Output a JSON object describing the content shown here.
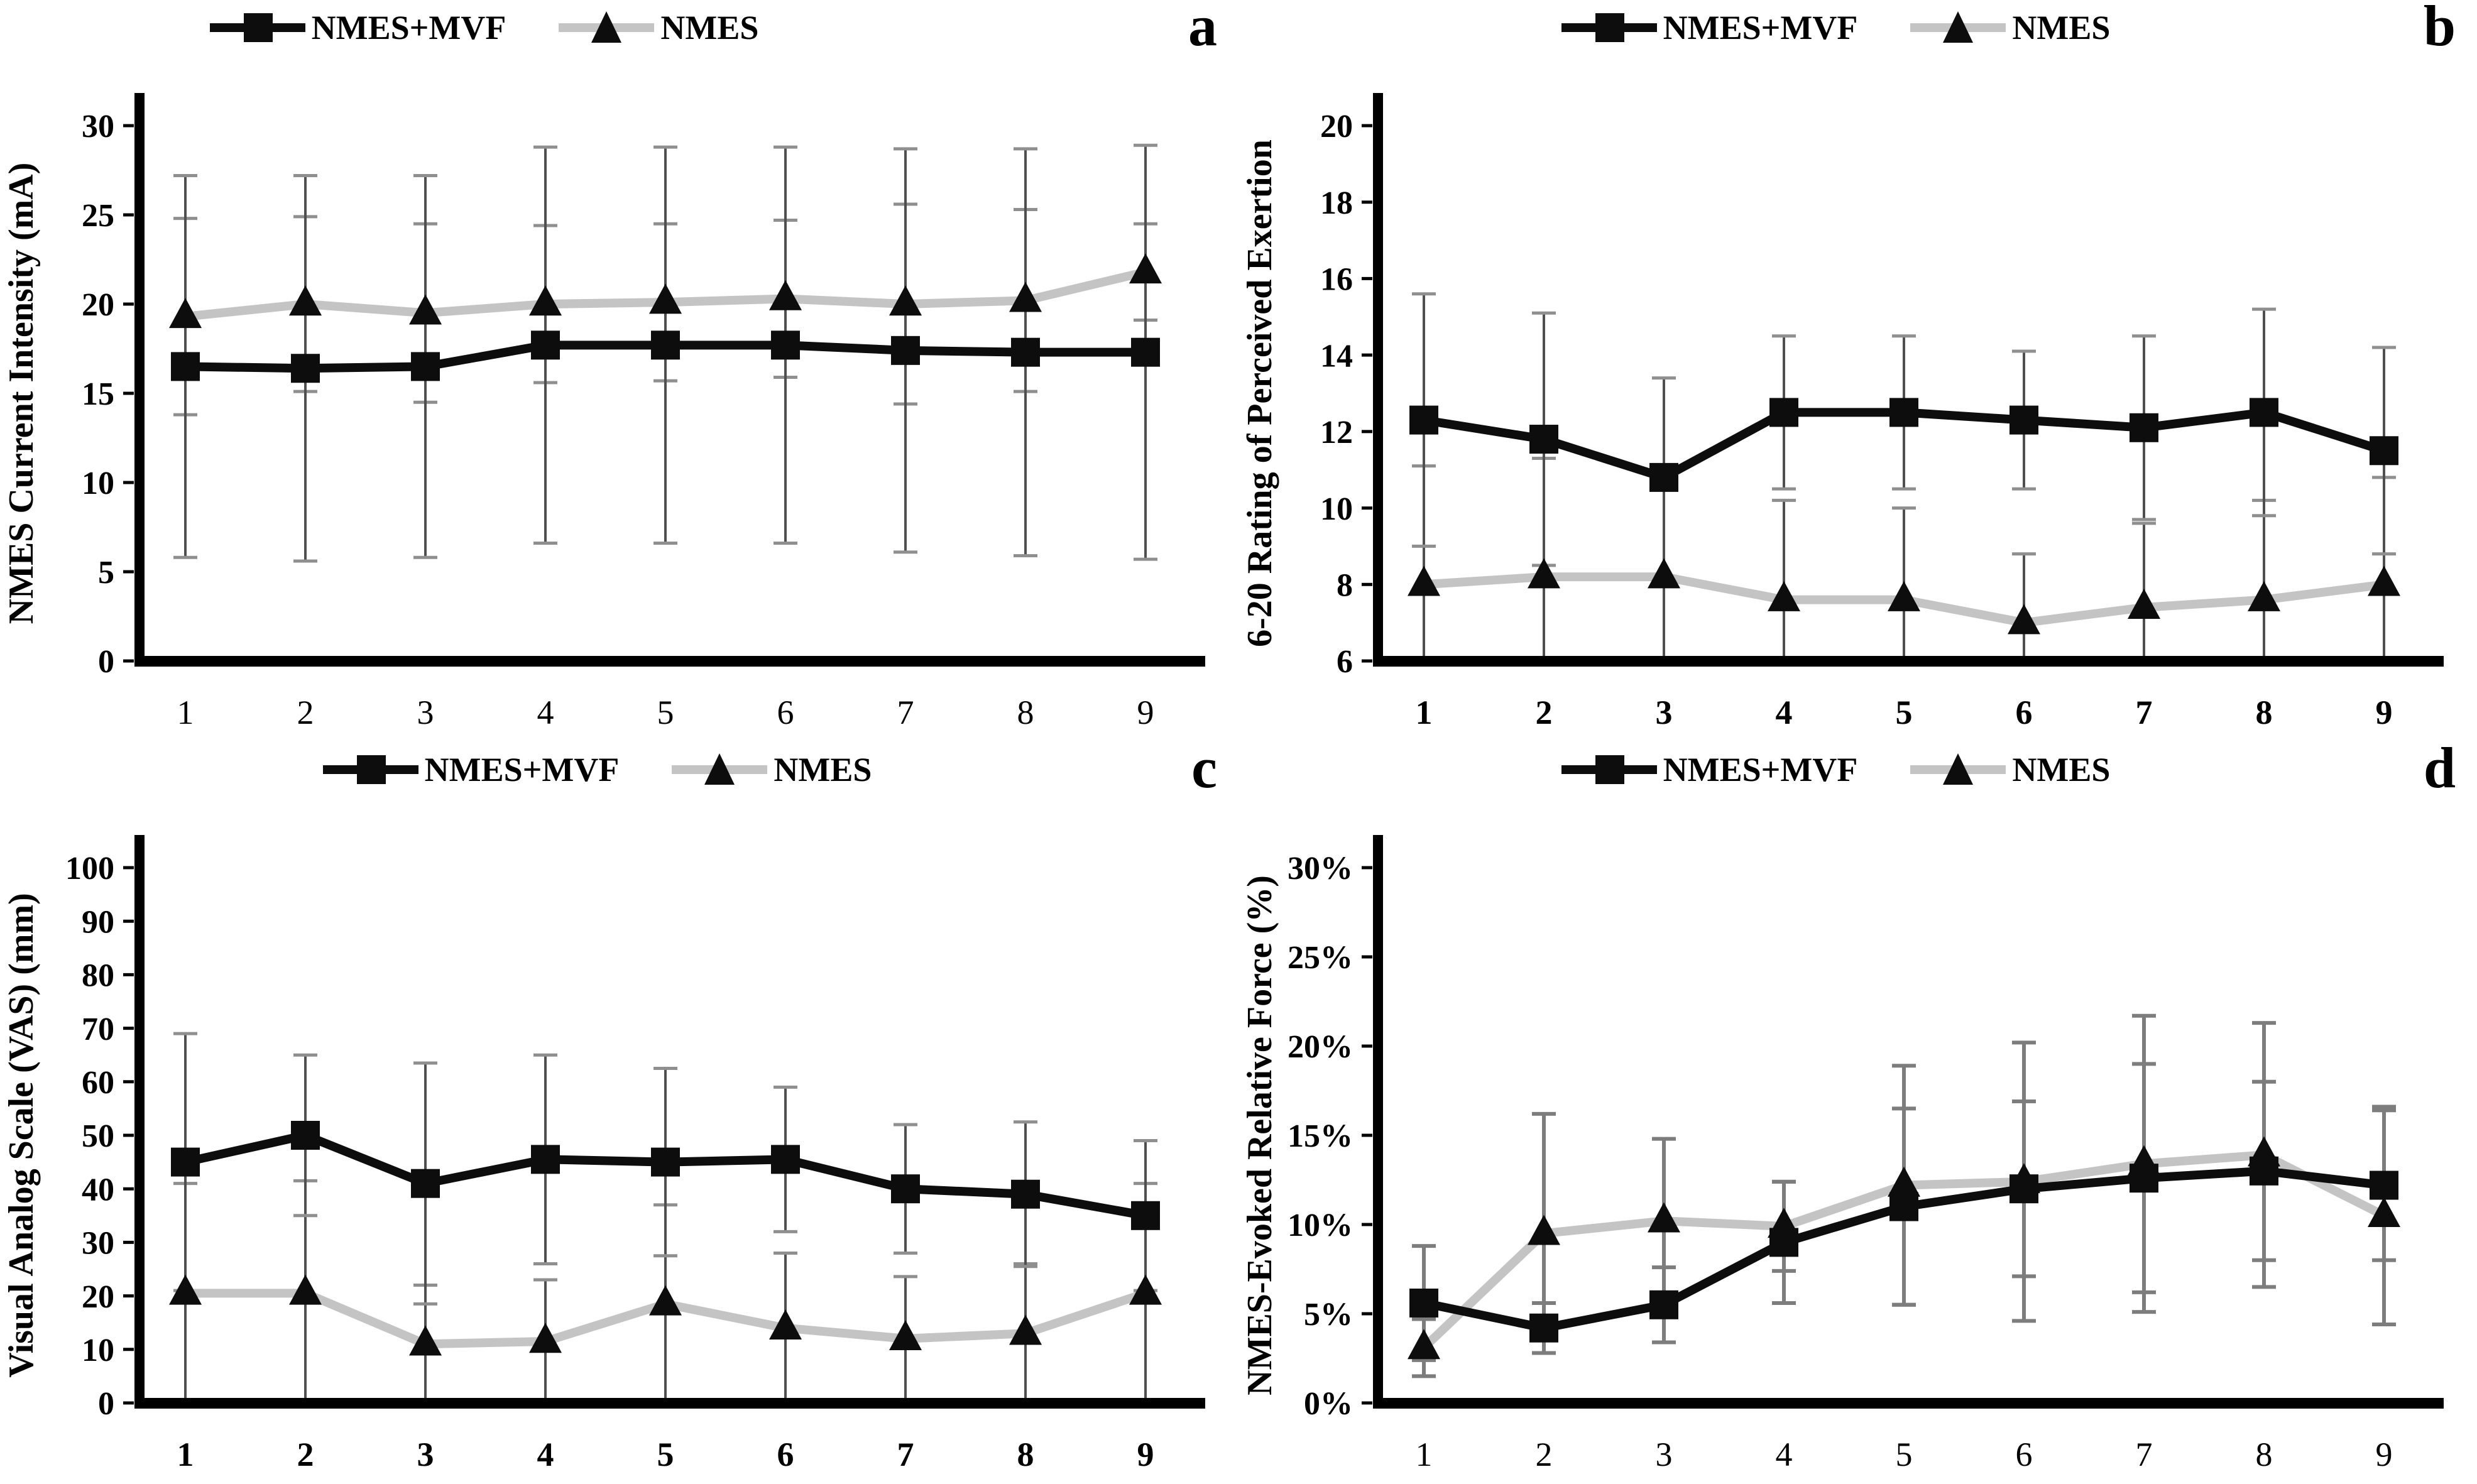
{
  "figure": {
    "background": "#ffffff",
    "text_color": "#000000",
    "series_colors": {
      "nmes_mvf_line": "#0d0d0d",
      "nmes_line": "#c4c4c4",
      "marker": "#0d0d0d"
    }
  },
  "chart_data": [
    {
      "panel": "a",
      "type": "line",
      "title": "",
      "xlabel": "",
      "ylabel": "NMES Current Intensity (mA)",
      "ylim": [
        0,
        30
      ],
      "yticks": [
        0,
        5,
        10,
        15,
        20,
        25,
        30
      ],
      "ytick_labels": [
        "0",
        "5",
        "10",
        "15",
        "20",
        "25",
        "30"
      ],
      "x": [
        1,
        2,
        3,
        4,
        5,
        6,
        7,
        8,
        9
      ],
      "xtick_labels": [
        "1",
        "2",
        "3",
        "4",
        "5",
        "6",
        "7",
        "8",
        "9"
      ],
      "xtick_bold": false,
      "grid": false,
      "legend_position": "top",
      "error_style": {
        "color": "#4f4f4f",
        "cap_color": "#8f8f8f",
        "width": 4,
        "cap_stroke": 5
      },
      "series": [
        {
          "name": "NMES+MVF",
          "marker": "square",
          "line_color": "#0d0d0d",
          "marker_color": "#0d0d0d",
          "values": [
            16.5,
            16.4,
            16.5,
            17.7,
            17.7,
            17.7,
            17.4,
            17.3,
            17.3
          ],
          "errors": [
            10.7,
            10.8,
            10.7,
            11.1,
            11.1,
            11.1,
            11.3,
            11.4,
            11.6
          ]
        },
        {
          "name": "NMES",
          "marker": "triangle",
          "line_color": "#c4c4c4",
          "marker_color": "#0d0d0d",
          "values": [
            19.3,
            20.0,
            19.5,
            20.0,
            20.1,
            20.3,
            20.0,
            20.2,
            21.8
          ],
          "errors": [
            5.5,
            4.9,
            5.0,
            4.4,
            4.4,
            4.4,
            5.6,
            5.1,
            2.7
          ]
        }
      ]
    },
    {
      "panel": "b",
      "type": "line",
      "title": "",
      "xlabel": "",
      "ylabel": "6-20 Rating of Perceived Exertion",
      "ylim": [
        6,
        20
      ],
      "yticks": [
        6,
        8,
        10,
        12,
        14,
        16,
        18,
        20
      ],
      "ytick_labels": [
        "6",
        "8",
        "10",
        "12",
        "14",
        "16",
        "18",
        "20"
      ],
      "x": [
        1,
        2,
        3,
        4,
        5,
        6,
        7,
        8,
        9
      ],
      "xtick_labels": [
        "1",
        "2",
        "3",
        "4",
        "5",
        "6",
        "7",
        "8",
        "9"
      ],
      "xtick_bold": true,
      "grid": false,
      "legend_position": "top",
      "error_style": {
        "color": "#4f4f4f",
        "cap_color": "#8f8f8f",
        "width": 4,
        "cap_stroke": 5
      },
      "series": [
        {
          "name": "NMES+MVF",
          "marker": "square",
          "line_color": "#0d0d0d",
          "marker_color": "#0d0d0d",
          "values": [
            12.3,
            11.8,
            10.8,
            12.5,
            12.5,
            12.3,
            12.1,
            12.5,
            11.5
          ],
          "errors": [
            3.3,
            3.3,
            2.6,
            2.0,
            2.0,
            1.8,
            2.4,
            2.7,
            2.7
          ]
        },
        {
          "name": "NMES",
          "marker": "triangle",
          "line_color": "#c4c4c4",
          "marker_color": "#0d0d0d",
          "values": [
            8.0,
            8.2,
            8.2,
            7.6,
            7.6,
            7.0,
            7.4,
            7.6,
            8.0
          ],
          "errors": [
            3.1,
            3.1,
            2.8,
            2.6,
            2.4,
            1.8,
            2.2,
            2.6,
            2.8
          ]
        }
      ]
    },
    {
      "panel": "c",
      "type": "line",
      "title": "",
      "xlabel": "",
      "ylabel": "Visual Analog Scale (VAS) (mm)",
      "ylim": [
        0,
        100
      ],
      "yticks": [
        0,
        10,
        20,
        30,
        40,
        50,
        60,
        70,
        80,
        90,
        100
      ],
      "ytick_labels": [
        "0",
        "10",
        "20",
        "30",
        "40",
        "50",
        "60",
        "70",
        "80",
        "90",
        "100"
      ],
      "x": [
        1,
        2,
        3,
        4,
        5,
        6,
        7,
        8,
        9
      ],
      "xtick_labels": [
        "1",
        "2",
        "3",
        "4",
        "5",
        "6",
        "7",
        "8",
        "9"
      ],
      "xtick_bold": true,
      "grid": false,
      "legend_position": "top",
      "error_style": {
        "color": "#4f4f4f",
        "cap_color": "#8f8f8f",
        "width": 4,
        "cap_stroke": 5
      },
      "series": [
        {
          "name": "NMES+MVF",
          "marker": "square",
          "line_color": "#0d0d0d",
          "marker_color": "#0d0d0d",
          "values": [
            45,
            50,
            41,
            45.5,
            45,
            45.5,
            40,
            39,
            35
          ],
          "errors": [
            24,
            15,
            22.5,
            19.5,
            17.5,
            13.5,
            12,
            13.5,
            14
          ]
        },
        {
          "name": "NMES",
          "marker": "triangle",
          "line_color": "#c4c4c4",
          "marker_color": "#0d0d0d",
          "values": [
            20.5,
            20.5,
            11,
            11.5,
            18.5,
            14,
            12,
            13,
            20.5
          ],
          "errors": [
            20.5,
            21,
            11,
            11.5,
            18.5,
            14,
            11.6,
            13,
            20.5
          ]
        }
      ]
    },
    {
      "panel": "d",
      "type": "line",
      "title": "",
      "xlabel": "",
      "ylabel": "NMES-Evoked Relative Force (%)",
      "ylim": [
        0,
        30
      ],
      "yticks": [
        0,
        5,
        10,
        15,
        20,
        25,
        30
      ],
      "ytick_labels": [
        "0%",
        "5%",
        "10%",
        "15%",
        "20%",
        "25%",
        "30%"
      ],
      "x": [
        1,
        2,
        3,
        4,
        5,
        6,
        7,
        8,
        9
      ],
      "xtick_labels": [
        "1",
        "2",
        "3",
        "4",
        "5",
        "6",
        "7",
        "8",
        "9"
      ],
      "xtick_bold": false,
      "grid": false,
      "legend_position": "top",
      "error_style": {
        "color": "#7d7d7d",
        "cap_color": "#7d7d7d",
        "width": 6,
        "cap_stroke": 6
      },
      "series": [
        {
          "name": "NMES+MVF",
          "marker": "square",
          "line_color": "#0d0d0d",
          "marker_color": "#0d0d0d",
          "values": [
            5.6,
            4.2,
            5.5,
            9.0,
            11.0,
            12.0,
            12.6,
            13.0,
            12.2
          ],
          "errors": [
            3.2,
            1.4,
            2.1,
            3.4,
            5.5,
            4.9,
            6.4,
            5.0,
            4.2
          ]
        },
        {
          "name": "NMES",
          "marker": "triangle",
          "line_color": "#c4c4c4",
          "marker_color": "#0d0d0d",
          "values": [
            3.1,
            9.5,
            10.2,
            9.9,
            12.2,
            12.4,
            13.4,
            13.9,
            10.5
          ],
          "errors": [
            1.6,
            6.7,
            4.6,
            2.5,
            6.7,
            7.8,
            8.3,
            7.4,
            6.1
          ]
        }
      ]
    }
  ]
}
